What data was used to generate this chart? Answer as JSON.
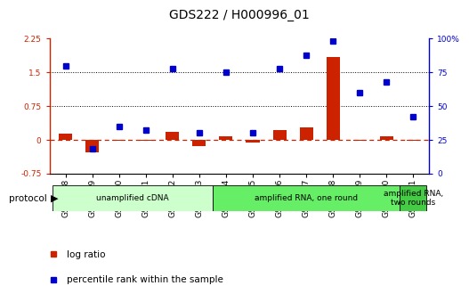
{
  "title": "GDS222 / H000996_01",
  "samples": [
    "GSM4848",
    "GSM4849",
    "GSM4850",
    "GSM4851",
    "GSM4852",
    "GSM4853",
    "GSM4854",
    "GSM4855",
    "GSM4856",
    "GSM4857",
    "GSM4858",
    "GSM4859",
    "GSM4860",
    "GSM4861"
  ],
  "log_ratio": [
    0.13,
    -0.28,
    -0.02,
    -0.02,
    0.17,
    -0.15,
    0.08,
    -0.07,
    0.22,
    0.28,
    1.85,
    -0.02,
    0.08,
    -0.02
  ],
  "percentile": [
    80,
    18,
    35,
    32,
    78,
    30,
    75,
    30,
    78,
    88,
    98,
    60,
    68,
    42
  ],
  "protocols": [
    {
      "label": "unamplified cDNA",
      "start": 0,
      "end": 6,
      "color": "#ccffcc"
    },
    {
      "label": "amplified RNA, one round",
      "start": 6,
      "end": 13,
      "color": "#66ee66"
    },
    {
      "label": "amplified RNA,\ntwo rounds",
      "start": 13,
      "end": 14,
      "color": "#44cc44"
    }
  ],
  "left_ylim": [
    -0.75,
    2.25
  ],
  "left_yticks": [
    -0.75,
    0,
    0.75,
    1.5,
    2.25
  ],
  "right_ylim": [
    0,
    100
  ],
  "right_yticks": [
    0,
    25,
    50,
    75,
    100
  ],
  "hlines": [
    0.75,
    1.5
  ],
  "bar_color": "#cc2200",
  "dot_color": "#0000cc",
  "zero_line_color": "#cc2200",
  "title_fontsize": 10,
  "tick_fontsize": 6.5,
  "label_fontsize": 7.5,
  "background_color": "#ffffff"
}
